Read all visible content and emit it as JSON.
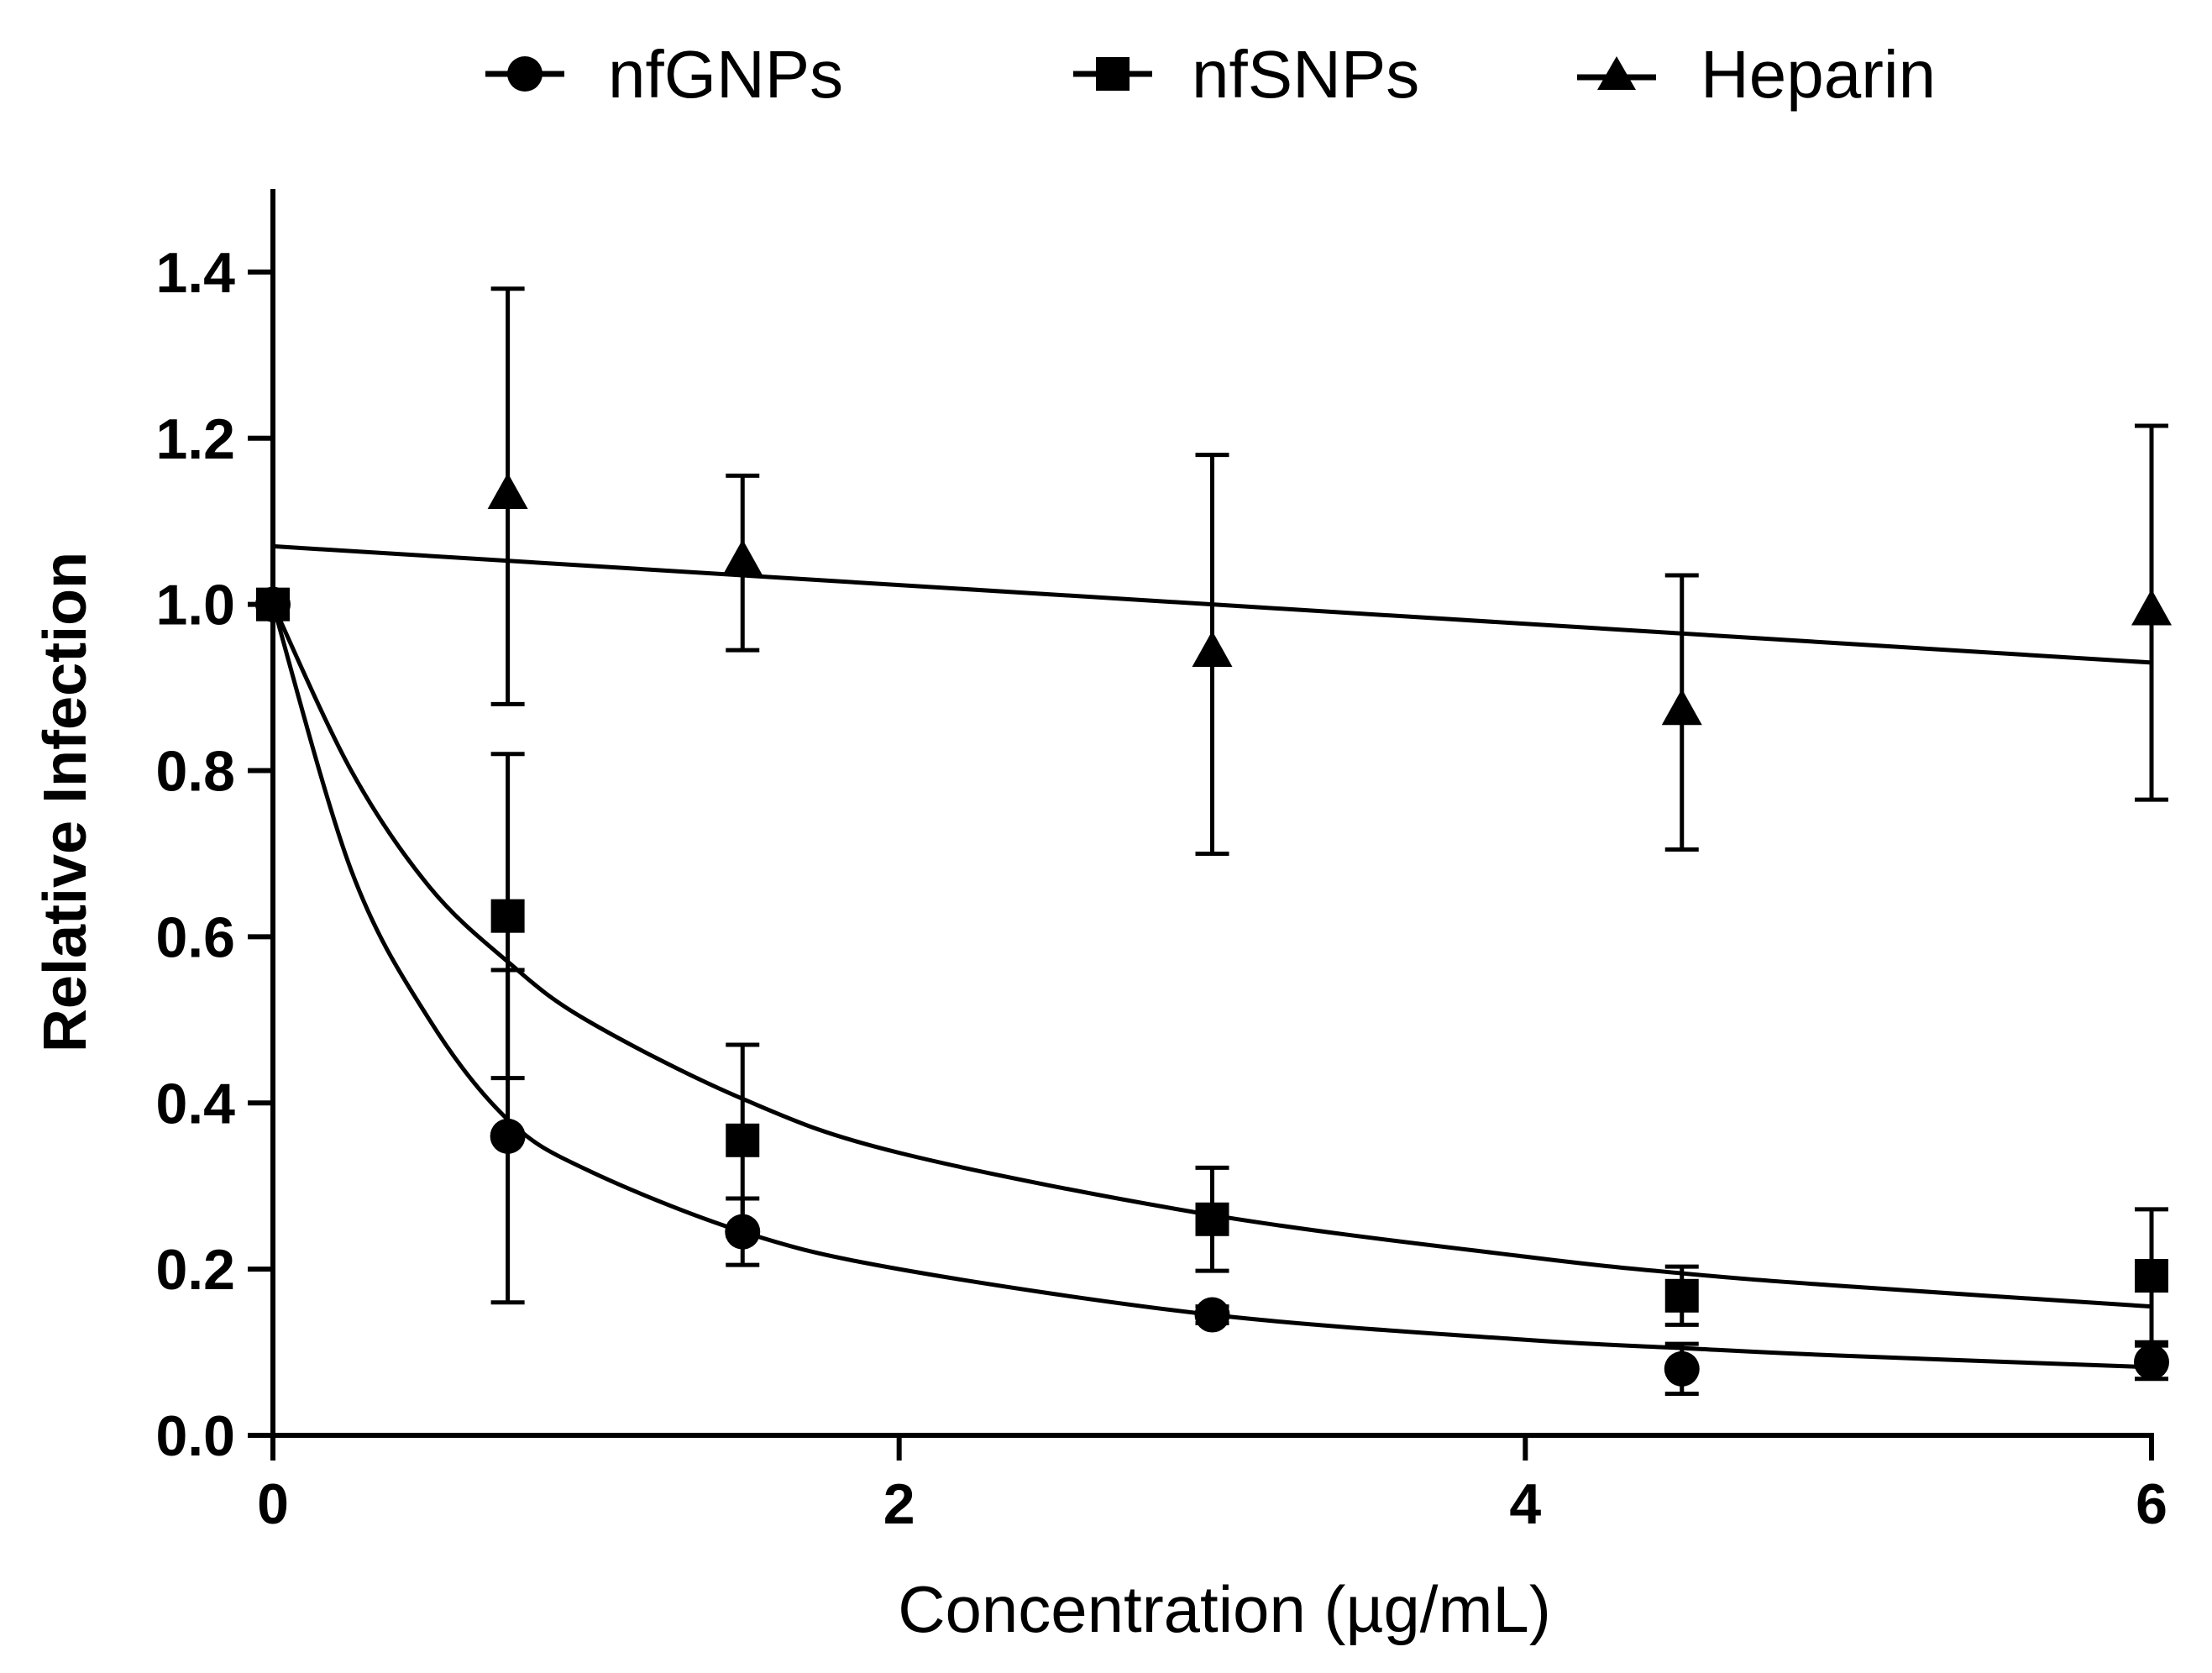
{
  "colors": {
    "ink": "#000000",
    "background": "#ffffff"
  },
  "chart_data": {
    "type": "scatter",
    "title": "",
    "xlabel": "Concentration (µg/mL)",
    "ylabel": "Relative Infection",
    "xlim": [
      0,
      6
    ],
    "ylim": [
      0,
      1.5
    ],
    "xticks": [
      0,
      2,
      4,
      6
    ],
    "xtick_labels": [
      "0",
      "2",
      "4",
      "6"
    ],
    "yticks": [
      0,
      0.2,
      0.4,
      0.6,
      0.8,
      1.0,
      1.2,
      1.4
    ],
    "ytick_labels": [
      "0.0",
      "0.2",
      "0.4",
      "0.6",
      "0.8",
      "1.0",
      "1.2",
      "1.4"
    ],
    "grid": false,
    "legend_position": "top-center",
    "series": [
      {
        "name": "nfGNPs",
        "marker": "circle",
        "x": [
          0,
          0.75,
          1.5,
          3,
          4.5,
          6
        ],
        "y": [
          1.0,
          0.36,
          0.245,
          0.145,
          0.08,
          0.088
        ],
        "error": [
          0.0,
          0.2,
          0.04,
          0.01,
          0.03,
          0.02
        ],
        "fit": "hyperbolic-decay",
        "fit_values": {
          "x": [
            0,
            0.25,
            0.5,
            0.75,
            1,
            1.5,
            2,
            3,
            4,
            4.5,
            5,
            6
          ],
          "y": [
            1.0,
            0.68,
            0.5,
            0.38,
            0.32,
            0.245,
            0.2,
            0.145,
            0.115,
            0.105,
            0.096,
            0.082
          ]
        }
      },
      {
        "name": "nfSNPs",
        "marker": "square",
        "x": [
          0,
          0.75,
          1.5,
          3,
          4.5,
          6
        ],
        "y": [
          1.0,
          0.625,
          0.355,
          0.26,
          0.168,
          0.192
        ],
        "error": [
          0.0,
          0.195,
          0.115,
          0.062,
          0.035,
          0.08
        ],
        "fit": "hyperbolic-decay",
        "fit_values": {
          "x": [
            0,
            0.25,
            0.5,
            0.75,
            1,
            1.5,
            2,
            3,
            4,
            4.5,
            5,
            6
          ],
          "y": [
            1.0,
            0.8,
            0.66,
            0.57,
            0.5,
            0.405,
            0.34,
            0.265,
            0.215,
            0.195,
            0.18,
            0.155
          ]
        }
      },
      {
        "name": "Heparin",
        "marker": "triangle",
        "x": [
          0.75,
          1.5,
          3,
          4.5,
          6
        ],
        "y": [
          1.13,
          1.05,
          0.94,
          0.87,
          0.99
        ],
        "error": [
          0.25,
          0.105,
          0.24,
          0.165,
          0.225
        ],
        "fit": "linear",
        "fit_values": {
          "x": [
            0,
            6
          ],
          "y": [
            1.07,
            0.93
          ]
        }
      }
    ]
  }
}
